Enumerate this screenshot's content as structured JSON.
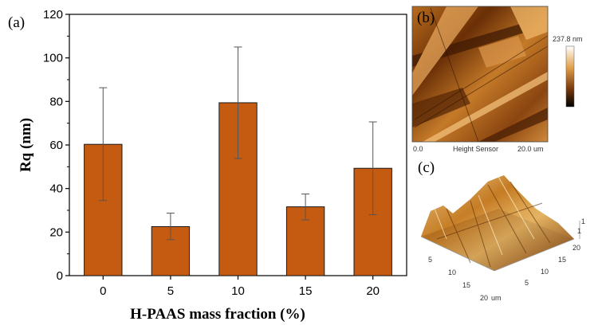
{
  "panels": {
    "a": "(a)",
    "b": "(b)",
    "c": "(c)"
  },
  "colors": {
    "bar": "#c55a11",
    "bar_edge": "#1a1a1a",
    "error": "#555555"
  },
  "chart_data": {
    "type": "bar",
    "title": "",
    "categories": [
      "0",
      "5",
      "10",
      "15",
      "20"
    ],
    "values": [
      60.3,
      22.5,
      79.4,
      31.6,
      49.3
    ],
    "errors_low": [
      34.5,
      16.5,
      53.8,
      25.6,
      28.0
    ],
    "errors_high": [
      86.3,
      28.7,
      105.0,
      37.5,
      70.6
    ],
    "xlabel": "H-PAAS mass fraction (%)",
    "ylabel": "Rq (nm)",
    "ylim": [
      0,
      120
    ],
    "yticks": [
      "0",
      "20",
      "40",
      "60",
      "80",
      "100",
      "120"
    ],
    "grid": false
  },
  "afm_2d": {
    "scale_max": "237.8 nm",
    "x_start": "0.0",
    "sensor": "Height Sensor",
    "x_end": "20.0 um"
  },
  "afm_3d": {
    "z_tick": "1",
    "ticks": [
      "5",
      "10",
      "15",
      "20"
    ],
    "unit": "um"
  }
}
